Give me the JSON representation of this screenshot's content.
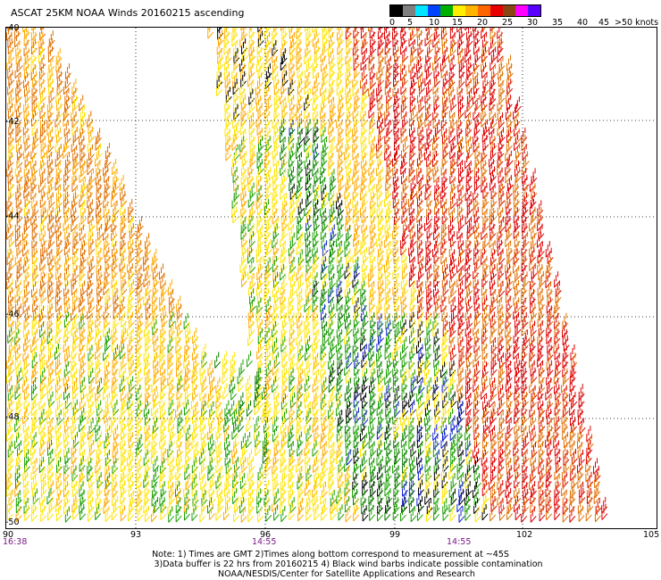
{
  "title": "ASCAT 25KM NOAA Winds 20160215 ascending",
  "legend": {
    "labels": [
      "0",
      "5",
      "10",
      "15",
      "20",
      "25",
      "30",
      "35",
      "40",
      "45",
      ">50 knots"
    ],
    "colors": [
      "#000000",
      "#7f7f7f",
      "#00e5ff",
      "#0044ff",
      "#00b000",
      "#ffee00",
      "#ffb400",
      "#ff6600",
      "#e80000",
      "#8b4513",
      "#ff00ff",
      "#5a00ff"
    ]
  },
  "axes": {
    "lat_labels": [
      "-40",
      "-42",
      "-44",
      "-46",
      "-48",
      "-50"
    ],
    "lon_labels": [
      "90",
      "93",
      "96",
      "99",
      "102",
      "105"
    ]
  },
  "times": [
    "16:38",
    "14:55",
    "14:55"
  ],
  "notes": {
    "line1": "Note: 1) Times are GMT 2)Times along bottom correspond to measurement at ~45S",
    "line2": "3)Data buffer is 22 hrs from 20160215 4) Black wind barbs indicate possible contamination",
    "line3": "NOAA/NESDIS/Center for Satellite Applications and Research"
  }
}
